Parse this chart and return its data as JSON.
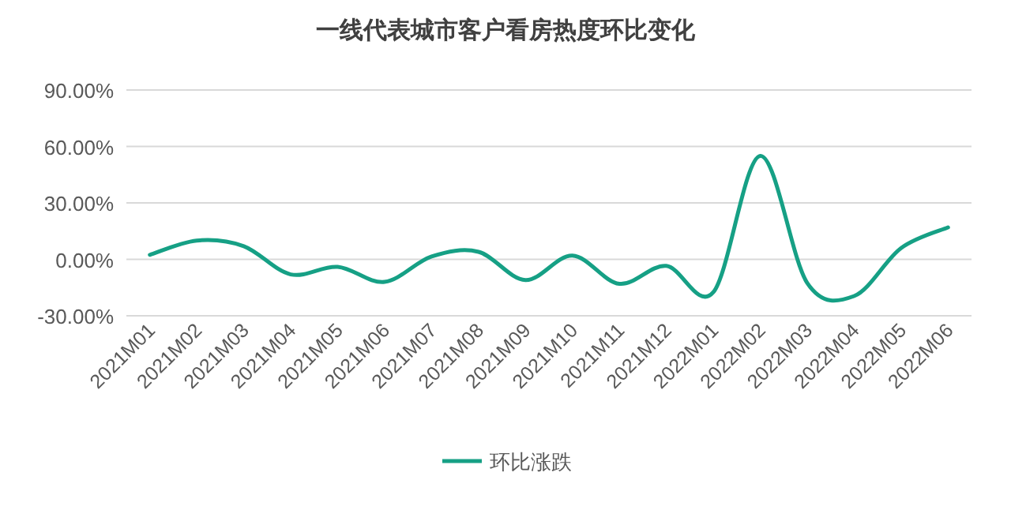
{
  "chart_data": {
    "type": "line",
    "title": "一线代表城市客户看房热度环比变化",
    "categories": [
      "2021M01",
      "2021M02",
      "2021M03",
      "2021M04",
      "2021M05",
      "2021M06",
      "2021M07",
      "2021M08",
      "2021M09",
      "2021M10",
      "2021M11",
      "2021M12",
      "2022M01",
      "2022M02",
      "2022M03",
      "2022M04",
      "2022M05",
      "2022M06"
    ],
    "series": [
      {
        "name": "环比涨跌",
        "color": "#16a085",
        "values": [
          2.4,
          10,
          7,
          -8,
          -4,
          -12,
          1.5,
          4,
          -11,
          2,
          -13,
          -3.5,
          -17.5,
          55,
          -12.5,
          -19.5,
          6,
          17
        ]
      }
    ],
    "ylim": [
      -30,
      90
    ],
    "yticks": [
      {
        "value": -30,
        "label": "-30.00%"
      },
      {
        "value": 0,
        "label": "0.00%"
      },
      {
        "value": 30,
        "label": "30.00%"
      },
      {
        "value": 60,
        "label": "60.00%"
      },
      {
        "value": 90,
        "label": "90.00%"
      }
    ],
    "grid": "y",
    "legend": "bottom",
    "marker": "none",
    "line_style": "solid"
  }
}
